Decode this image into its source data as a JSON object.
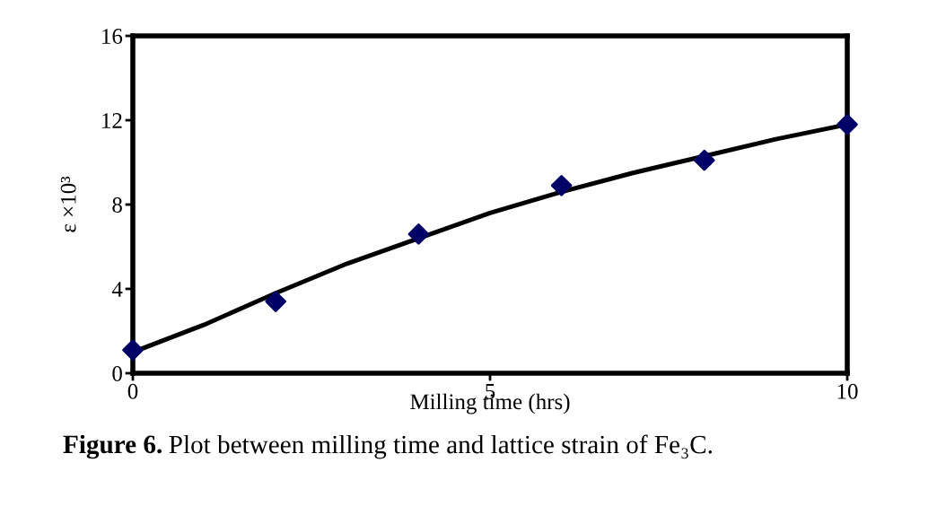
{
  "chart_data": {
    "type": "scatter",
    "xlabel": "Milling time (hrs)",
    "ylabel": "ε ×10³",
    "series": [
      {
        "color": "#000066",
        "marker": "diamond",
        "x": [
          0,
          2,
          4,
          6,
          8,
          10
        ],
        "values": [
          1.1,
          3.4,
          6.6,
          8.9,
          10.1,
          11.8
        ]
      },
      {
        "type": "line",
        "color": "#000000",
        "line_style": "solid",
        "x": [
          0,
          1,
          2,
          3,
          4,
          5,
          6,
          7,
          8,
          9,
          10
        ],
        "values": [
          1.0,
          2.3,
          3.8,
          5.2,
          6.4,
          7.6,
          8.6,
          9.5,
          10.3,
          11.1,
          11.8
        ]
      }
    ],
    "xlim": [
      0,
      10
    ],
    "ylim": [
      0,
      16
    ],
    "xticks": [
      0,
      5,
      10
    ],
    "yticks": [
      0,
      4,
      8,
      12,
      16
    ],
    "grid": false,
    "legend": false,
    "annotations": [
      "Figure 6.",
      "Plot between milling time and lattice strain of Fe₃C."
    ]
  }
}
